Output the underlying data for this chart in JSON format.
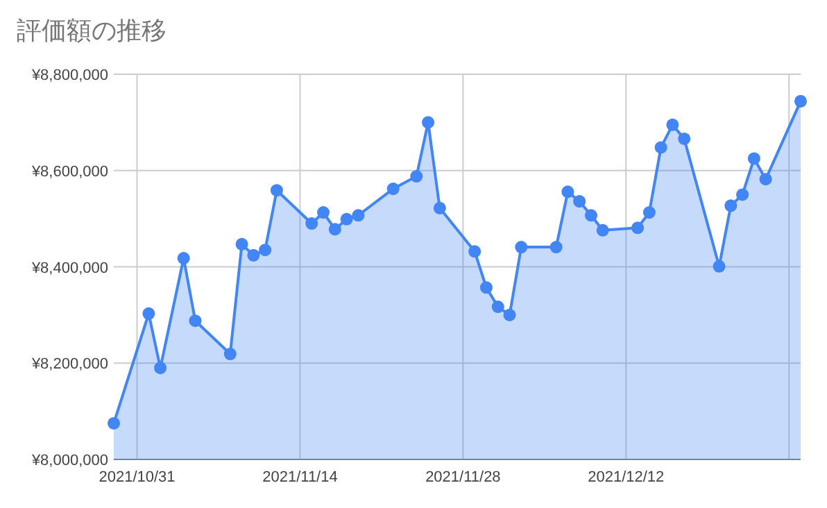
{
  "chart_data": {
    "type": "area",
    "title": "評価額の推移",
    "x": [
      "2021-10-29",
      "2021-11-01",
      "2021-11-02",
      "2021-11-04",
      "2021-11-05",
      "2021-11-08",
      "2021-11-09",
      "2021-11-10",
      "2021-11-11",
      "2021-11-12",
      "2021-11-15",
      "2021-11-16",
      "2021-11-17",
      "2021-11-18",
      "2021-11-19",
      "2021-11-22",
      "2021-11-24",
      "2021-11-25",
      "2021-11-26",
      "2021-11-29",
      "2021-11-30",
      "2021-12-01",
      "2021-12-02",
      "2021-12-03",
      "2021-12-06",
      "2021-12-07",
      "2021-12-08",
      "2021-12-09",
      "2021-12-10",
      "2021-12-13",
      "2021-12-14",
      "2021-12-15",
      "2021-12-16",
      "2021-12-17",
      "2021-12-20",
      "2021-12-21",
      "2021-12-22",
      "2021-12-23",
      "2021-12-24",
      "2021-12-27"
    ],
    "series": [
      {
        "color": "#4285f4",
        "values": [
          8075000,
          8303000,
          8190000,
          8418000,
          8288000,
          8219000,
          8447000,
          8424000,
          8435000,
          8559000,
          8490000,
          8513000,
          8478000,
          8499000,
          8507000,
          8562000,
          8588000,
          8700000,
          8522000,
          8432000,
          8357000,
          8317000,
          8300000,
          8441000,
          8441000,
          8556000,
          8536000,
          8507000,
          8476000,
          8481000,
          8513000,
          8648000,
          8695000,
          8666000,
          8401000,
          8527000,
          8550000,
          8625000,
          8582000,
          8744000
        ]
      }
    ],
    "xlim": [
      "2021-10-29",
      "2021-12-27"
    ],
    "xticks": [
      {
        "value": "2021-10-31",
        "label": "2021/10/31"
      },
      {
        "value": "2021-11-14",
        "label": "2021/11/14"
      },
      {
        "value": "2021-11-28",
        "label": "2021/11/28"
      },
      {
        "value": "2021-12-12",
        "label": "2021/12/12"
      },
      {
        "value": "2021-12-26",
        "label": null
      }
    ],
    "ylim": [
      8000000,
      8800000
    ],
    "yticks": [
      {
        "value": 8000000,
        "label": "¥8,000,000"
      },
      {
        "value": 8200000,
        "label": "¥8,200,000"
      },
      {
        "value": 8400000,
        "label": "¥8,400,000"
      },
      {
        "value": 8600000,
        "label": "¥8,600,000"
      },
      {
        "value": 8800000,
        "label": "¥8,800,000"
      }
    ],
    "grid": true,
    "marker": "circle"
  }
}
